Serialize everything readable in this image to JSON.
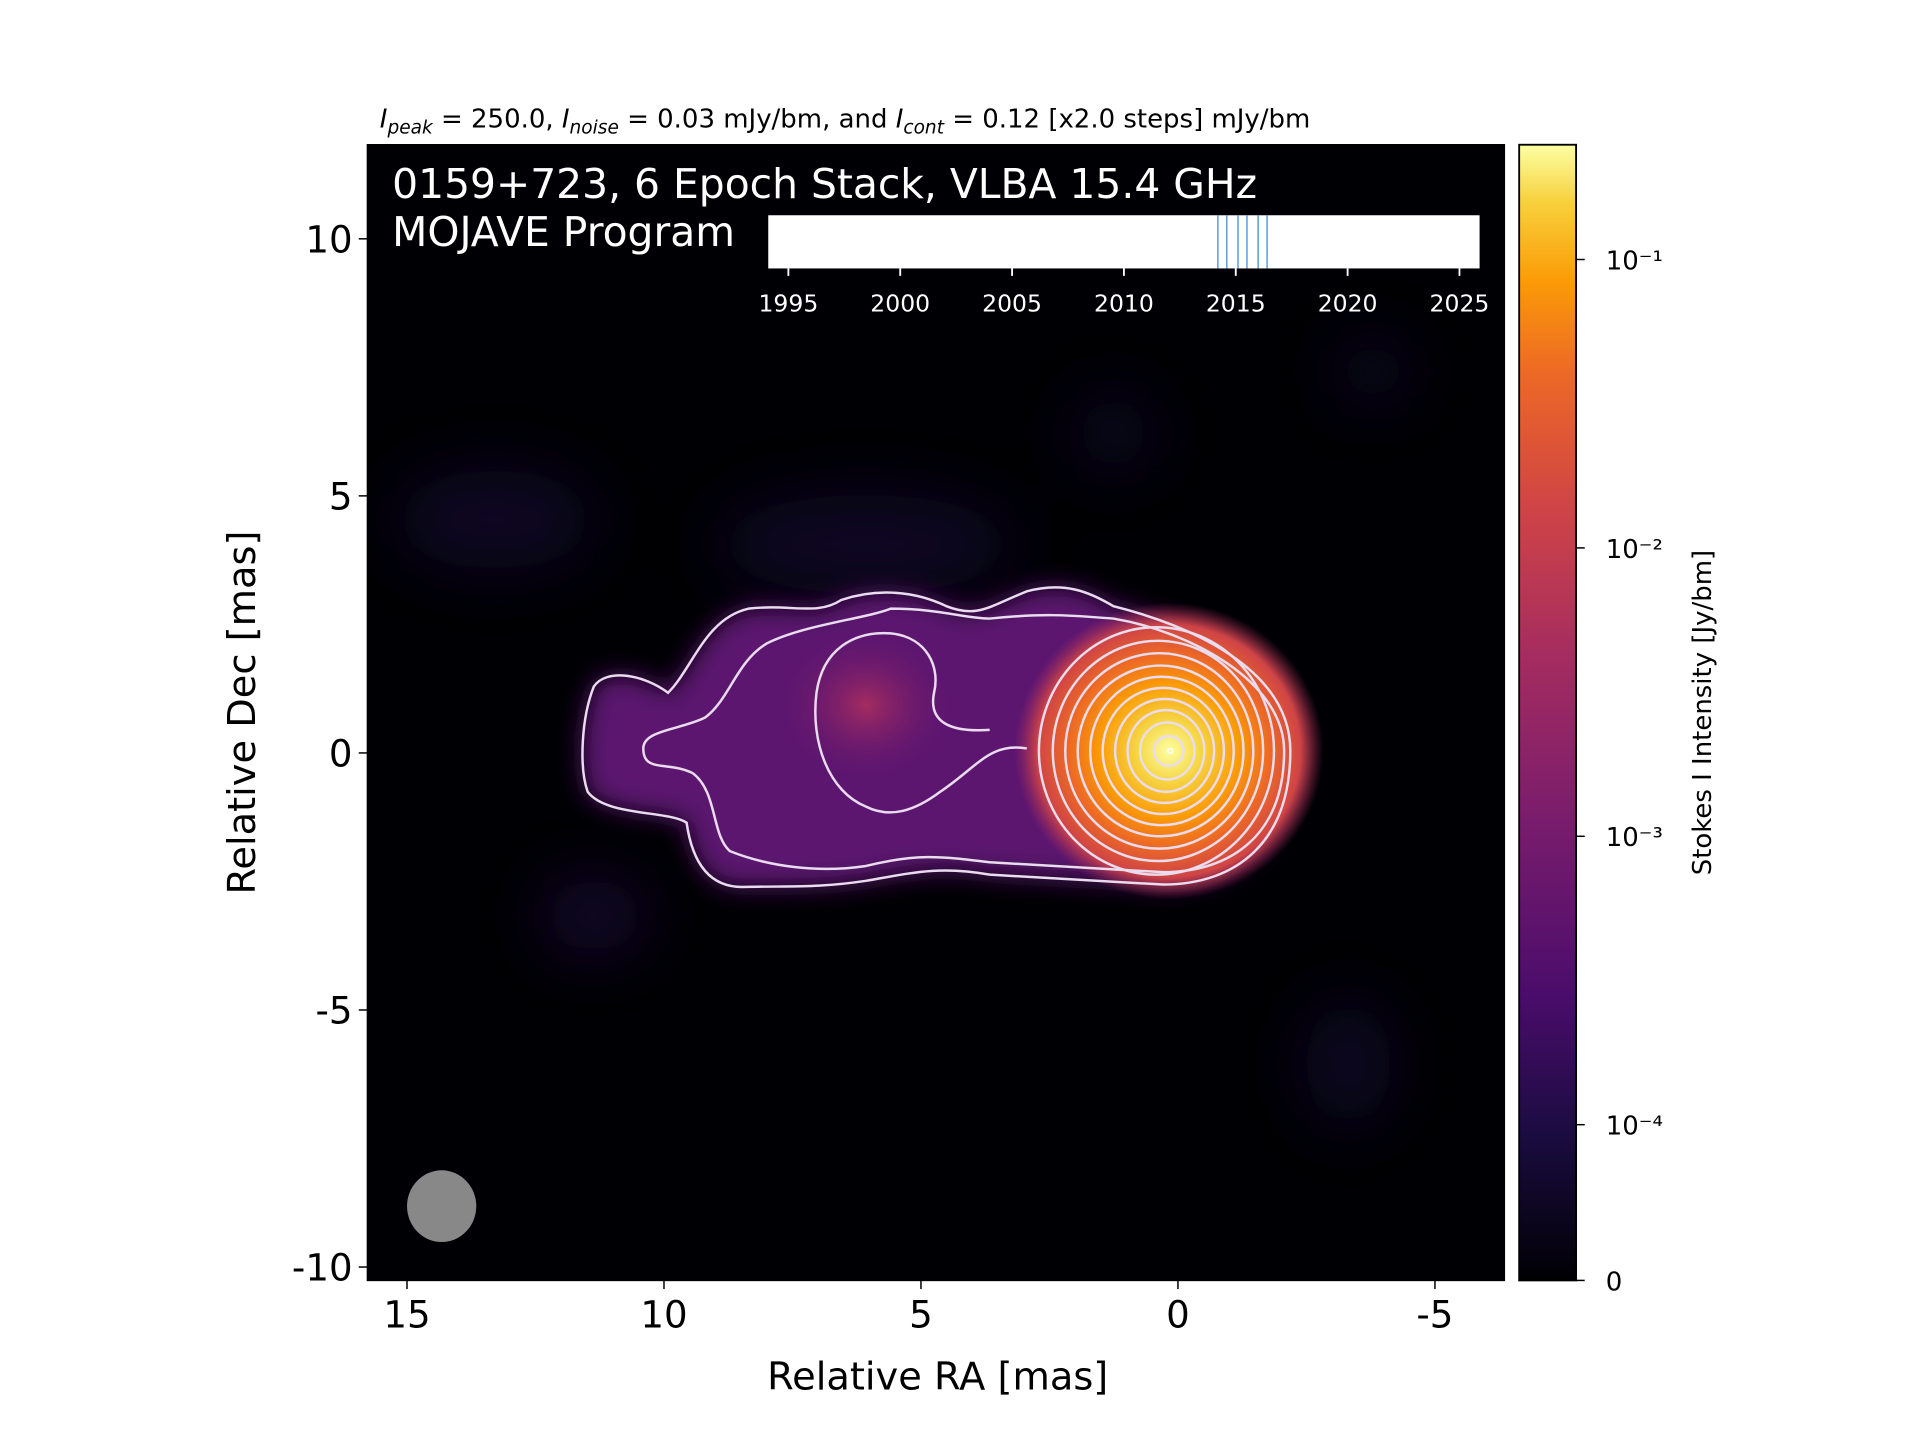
{
  "chart_data": {
    "type": "image",
    "subtitle_parts": [
      "I",
      "peak",
      " = 250.0, ",
      "I",
      "noise",
      " = 0.03 mJy/bm, and ",
      "I",
      "cont",
      " = 0.12 [x2.0 steps] mJy/bm"
    ],
    "title": "0159+723, 6 Epoch Stack, VLBA 15.4 GHz",
    "program": "MOJAVE Program",
    "xlabel": "Relative RA [mas]",
    "ylabel": "Relative Dec [mas]",
    "xlim": [
      15.77,
      -6.35
    ],
    "xticks": [
      15,
      10,
      5,
      0,
      -5
    ],
    "ylim": [
      -10.26,
      11.83
    ],
    "yticks": [
      10,
      5,
      0,
      -5,
      -10
    ],
    "colorbar": {
      "label": "Stokes I Intensity [Jy/bm]",
      "scale": "symlog",
      "linthresh": 0.0001,
      "linscale": 0.54,
      "clim": [
        0,
        0.25
      ],
      "ticks": [
        0,
        {
          "value": 0.0001,
          "label": "10⁻⁴"
        },
        {
          "value": 0.001,
          "label": "10⁻³"
        },
        {
          "value": 0.01,
          "label": "10⁻²"
        },
        {
          "value": 0.1,
          "label": "10⁻¹"
        }
      ]
    },
    "epochs_inset": {
      "xlim": [
        1994.1,
        2025.9
      ],
      "xticks": [
        1995,
        2000,
        2005,
        2010,
        2015,
        2020,
        2025
      ],
      "epochs": [
        2014.2,
        2014.6,
        2015.1,
        2015.5,
        2016.0,
        2016.4
      ],
      "color": "#5b9bd5"
    }
  }
}
